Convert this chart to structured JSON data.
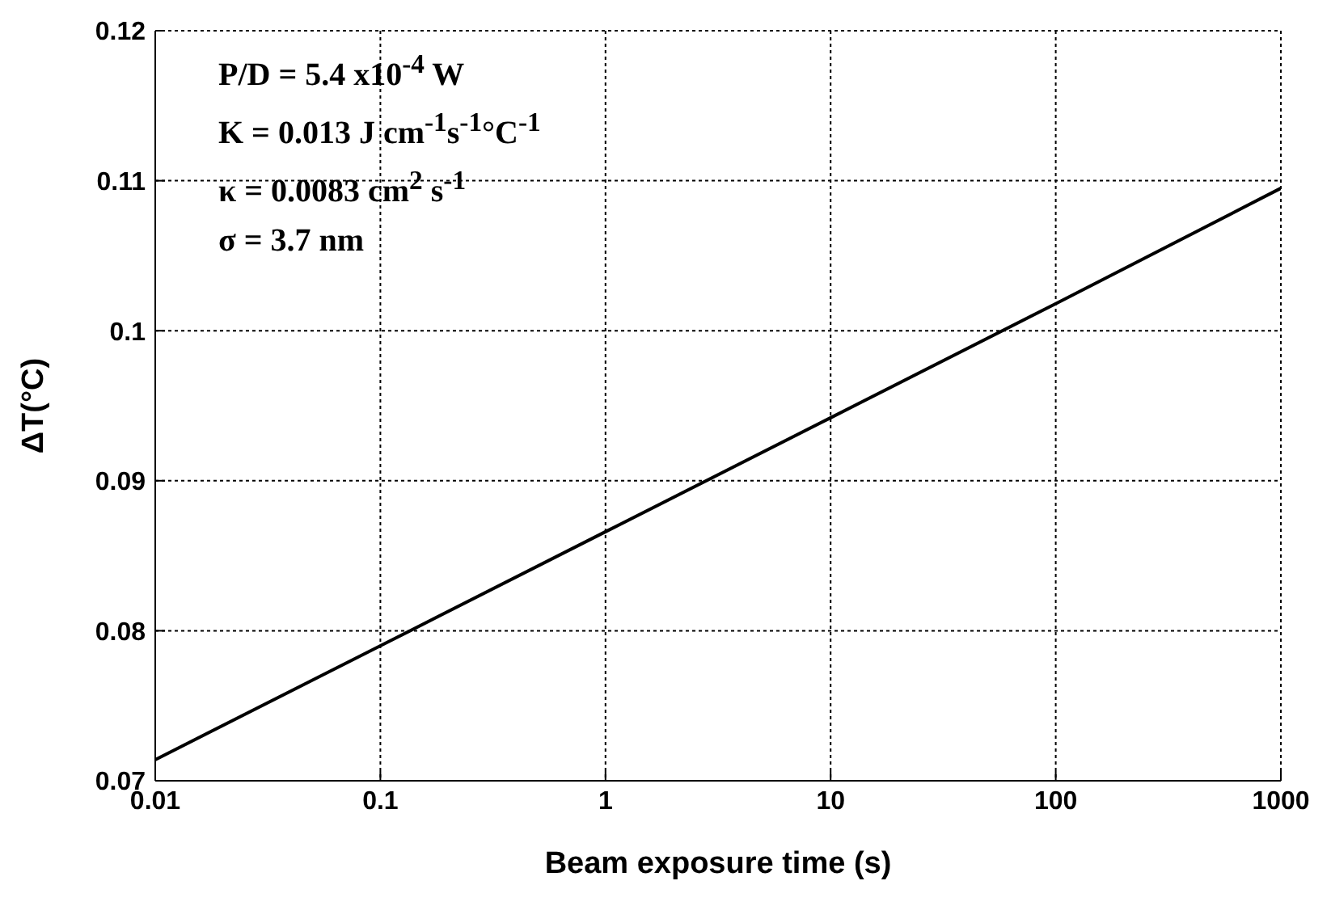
{
  "chart_data": {
    "type": "line",
    "xlabel": "Beam exposure time  (s)",
    "ylabel": "ΔT(°C)",
    "x": [
      0.01,
      0.1,
      1,
      10,
      100,
      1000
    ],
    "series": [
      {
        "color": "#000000",
        "values": [
          0.0714,
          0.079,
          0.0866,
          0.0942,
          0.1018,
          0.1095
        ]
      }
    ],
    "log": "x",
    "xlim": [
      0.01,
      1000
    ],
    "xticks": [
      0.01,
      0.1,
      1,
      10,
      100,
      1000
    ],
    "ylim": [
      0.07,
      0.12
    ],
    "yticks": [
      0.07,
      0.08,
      0.09,
      0.1,
      0.11,
      0.12
    ],
    "grid": true,
    "legend": false,
    "annotations": [
      "P/D = 5.4 x10$^{-4}$ W",
      "K = 0.013 J cm$^{-1}$s$^{-1}$°C$^{-1}$",
      "κ = 0.0083 cm$^{2}$ s$^{-1}$",
      "σ = 3.7 nm"
    ]
  }
}
